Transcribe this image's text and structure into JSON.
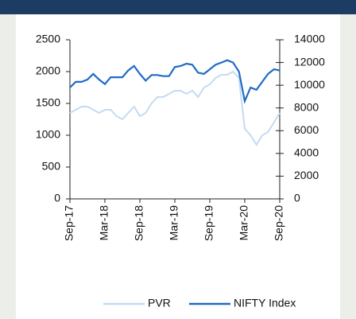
{
  "chart_data": {
    "type": "line",
    "x": [
      "Sep-17",
      "Oct-17",
      "Nov-17",
      "Dec-17",
      "Jan-18",
      "Feb-18",
      "Mar-18",
      "Apr-18",
      "May-18",
      "Jun-18",
      "Jul-18",
      "Aug-18",
      "Sep-18",
      "Oct-18",
      "Nov-18",
      "Dec-18",
      "Jan-19",
      "Feb-19",
      "Mar-19",
      "Apr-19",
      "May-19",
      "Jun-19",
      "Jul-19",
      "Aug-19",
      "Sep-19",
      "Oct-19",
      "Nov-19",
      "Dec-19",
      "Jan-20",
      "Feb-20",
      "Mar-20",
      "Apr-20",
      "May-20",
      "Jun-20",
      "Jul-20",
      "Aug-20",
      "Sep-20"
    ],
    "xticks": [
      "Sep-17",
      "Mar-18",
      "Sep-18",
      "Mar-19",
      "Sep-19",
      "Mar-20",
      "Sep-20"
    ],
    "ylim": [
      0,
      2500
    ],
    "yticks": [
      0,
      500,
      1000,
      1500,
      2000,
      2500
    ],
    "y2lim": [
      0,
      14000
    ],
    "y2ticks": [
      0,
      2000,
      4000,
      6000,
      8000,
      10000,
      12000,
      14000
    ],
    "legend": "bottom",
    "series": [
      {
        "name": "PVR",
        "color": "#c3dbf3",
        "values": [
          1350,
          1400,
          1450,
          1450,
          1400,
          1350,
          1400,
          1400,
          1300,
          1250,
          1350,
          1450,
          1300,
          1350,
          1500,
          1600,
          1600,
          1650,
          1700,
          1700,
          1650,
          1700,
          1600,
          1750,
          1800,
          1900,
          1950,
          1950,
          2000,
          1900,
          1100,
          1000,
          850,
          1000,
          1050,
          1200,
          1350
        ]
      },
      {
        "name": "NIFTY Index",
        "color": "#1f6bc6",
        "axis": "y2",
        "values": [
          9800,
          10300,
          10300,
          10500,
          11000,
          10500,
          10100,
          10700,
          10700,
          10700,
          11300,
          11700,
          11000,
          10400,
          10900,
          10900,
          10800,
          10800,
          11600,
          11700,
          11900,
          11800,
          11100,
          11000,
          11400,
          11800,
          12000,
          12200,
          12000,
          11200,
          8600,
          9800,
          9600,
          10300,
          11000,
          11400,
          11300
        ]
      }
    ]
  }
}
